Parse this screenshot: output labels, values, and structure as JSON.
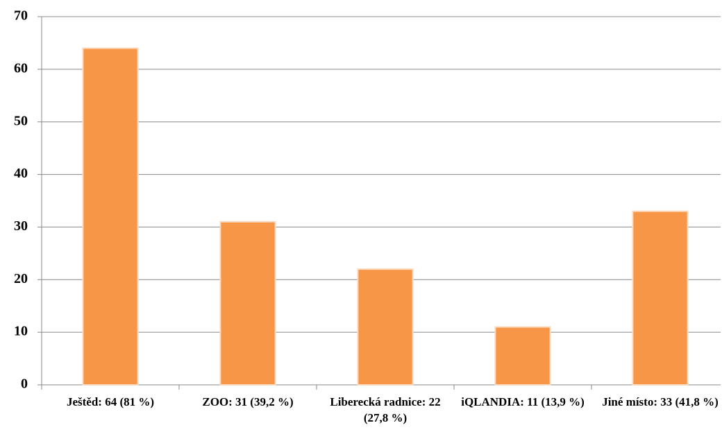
{
  "chart_data": {
    "type": "bar",
    "categories": [
      "Ještěd: 64 (81 %)",
      "ZOO: 31 (39,2 %)",
      "Liberecká radnice: 22 (27,8 %)",
      "iQLANDIA: 11 (13,9 %)",
      "Jiné místo: 33 (41,8 %)"
    ],
    "values": [
      64,
      31,
      22,
      11,
      33
    ],
    "color": "#f79646",
    "ylim": [
      0,
      70
    ],
    "yticks": [
      0,
      10,
      20,
      30,
      40,
      50,
      60,
      70
    ],
    "grid": true
  }
}
